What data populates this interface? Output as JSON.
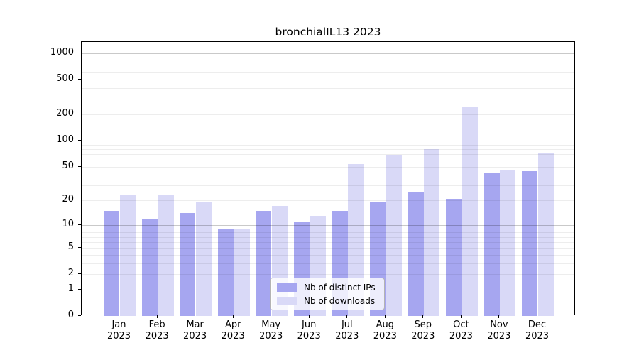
{
  "chart_data": {
    "type": "bar",
    "title": "bronchialIL13 2023",
    "categories": [
      "Jan",
      "Feb",
      "Mar",
      "Apr",
      "May",
      "Jun",
      "Jul",
      "Aug",
      "Sep",
      "Oct",
      "Nov",
      "Dec"
    ],
    "x_tick_second_line": "2023",
    "series": [
      {
        "name": "Nb of distinct IPs",
        "color": "#a6a6f0",
        "values": [
          15,
          12,
          14,
          9,
          15,
          11,
          15,
          19,
          25,
          21,
          42,
          44
        ]
      },
      {
        "name": "Nb of downloads",
        "color": "#d9d9f7",
        "values": [
          23,
          23,
          19,
          9,
          17,
          13,
          53,
          68,
          79,
          243,
          46,
          72
        ]
      }
    ],
    "xlabel": "",
    "ylabel": "",
    "y_ticks": [
      0,
      1,
      2,
      5,
      10,
      20,
      50,
      100,
      200,
      500,
      1000
    ],
    "y_tick_labels": [
      "0",
      "1",
      "2",
      "5",
      "10",
      "20",
      "50",
      "100",
      "200",
      "500",
      "1000"
    ],
    "y_scale": "log10(1+x)",
    "ylim": [
      0,
      1350
    ],
    "grid": "horizontal",
    "legend_position": "lower center",
    "colors": {
      "axis": "#000000",
      "major_gridline": "#c9c9c9",
      "minor_gridline": "#ededed",
      "legend_border": "#b3b3b3"
    }
  }
}
